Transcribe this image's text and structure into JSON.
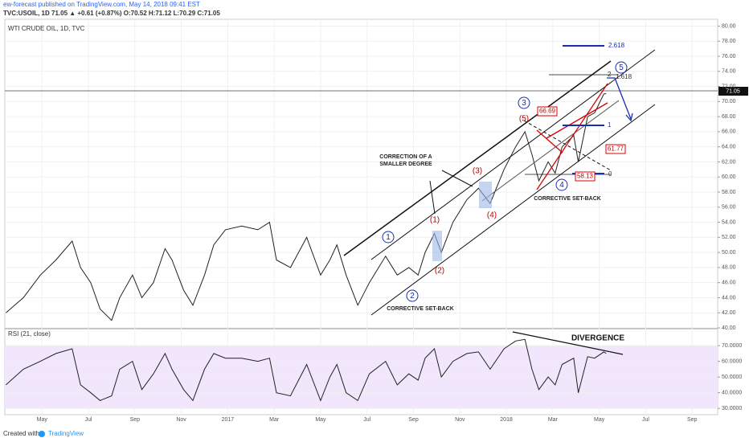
{
  "header": {
    "author_line": "ew-forecast published on TradingView.com, May 14, 2018 09:41 EST",
    "symbol_line": "TVC:USOIL, 1D 71.05 ▲ +0.61 (+0.87%) O:70.52 H:71.12 L:70.29 C:71.05"
  },
  "chart_data": [
    {
      "type": "line",
      "title": "WTI CRUDE OIL, 1D, TVC",
      "color": "#222",
      "last_label": "71.05",
      "x": [
        2.45,
        3.2,
        3.93,
        4.6,
        5.3,
        5.66,
        6.1,
        6.5,
        7.0,
        7.35,
        7.9,
        8.3,
        8.8,
        9.3,
        9.6,
        10.1,
        10.5,
        11.0,
        11.4,
        11.9,
        12.6,
        13.3,
        13.8,
        14.1,
        14.7,
        15.4,
        16.0,
        16.4,
        16.7,
        17.1,
        17.6,
        18.1,
        18.8,
        19.3,
        19.8,
        20.2,
        20.5,
        20.9,
        21.2,
        21.7,
        22.3,
        22.8,
        23.3,
        23.9,
        24.4,
        24.8,
        25.1,
        25.4,
        25.8,
        26.1,
        26.4,
        26.9,
        27.1,
        27.5,
        27.8,
        28.2,
        28.3
      ],
      "values": [
        42,
        44,
        47,
        49,
        51.5,
        48,
        46,
        42.5,
        41,
        44,
        47,
        44,
        46,
        50.5,
        49,
        45,
        43,
        47,
        51,
        53,
        53.5,
        53,
        54,
        49,
        48,
        52,
        47,
        49,
        51,
        47,
        43,
        46,
        49.5,
        47,
        48,
        47,
        50,
        52.5,
        50,
        54,
        57,
        58.5,
        56.5,
        61,
        64,
        66,
        63,
        59.5,
        62,
        60.5,
        64,
        65.5,
        62,
        68,
        68.5,
        71,
        71.05
      ],
      "xlim": [
        2.4,
        33.1
      ],
      "xticks": [
        {
          "value": 4,
          "label": "May"
        },
        {
          "value": 6,
          "label": "Jul"
        },
        {
          "value": 8,
          "label": "Sep"
        },
        {
          "value": 10,
          "label": "Nov"
        },
        {
          "value": 12,
          "label": "2017"
        },
        {
          "value": 14,
          "label": "Mar"
        },
        {
          "value": 16,
          "label": "May"
        },
        {
          "value": 18,
          "label": "Jul"
        },
        {
          "value": 20,
          "label": "Sep"
        },
        {
          "value": 22,
          "label": "Nov"
        },
        {
          "value": 24,
          "label": "2018"
        },
        {
          "value": 26,
          "label": "Mar"
        },
        {
          "value": 28,
          "label": "May"
        },
        {
          "value": 30,
          "label": "Jul"
        },
        {
          "value": 32,
          "label": "Sep"
        }
      ],
      "ylim": [
        40,
        80.9
      ],
      "yticks": [
        {
          "value": 40,
          "label": "40.00"
        },
        {
          "value": 42,
          "label": "42.00"
        },
        {
          "value": 44,
          "label": "44.00"
        },
        {
          "value": 46,
          "label": "46.00"
        },
        {
          "value": 48,
          "label": "48.00"
        },
        {
          "value": 50,
          "label": "50.00"
        },
        {
          "value": 52,
          "label": "52.00"
        },
        {
          "value": 54,
          "label": "54.00"
        },
        {
          "value": 56,
          "label": "56.00"
        },
        {
          "value": 58,
          "label": "58.00"
        },
        {
          "value": 60,
          "label": "60.00"
        },
        {
          "value": 62,
          "label": "62.00"
        },
        {
          "value": 64,
          "label": "64.00"
        },
        {
          "value": 66,
          "label": "66.00"
        },
        {
          "value": 68,
          "label": "68.00"
        },
        {
          "value": 70,
          "label": "70.00"
        },
        {
          "value": 72,
          "label": "72.00"
        },
        {
          "value": 74,
          "label": "74.00"
        },
        {
          "value": 76,
          "label": "76.00"
        },
        {
          "value": 78,
          "label": "78.00"
        },
        {
          "value": 80,
          "label": "80.00"
        }
      ]
    },
    {
      "type": "line",
      "title": "RSI (21, close)",
      "color": "#222",
      "band_color": "#f1e6fb",
      "x": [
        2.45,
        3.2,
        3.93,
        4.6,
        5.3,
        5.66,
        6.1,
        6.5,
        7.0,
        7.35,
        7.9,
        8.3,
        8.8,
        9.3,
        9.6,
        10.1,
        10.5,
        11.0,
        11.4,
        11.9,
        12.6,
        13.3,
        13.8,
        14.1,
        14.7,
        15.4,
        16.0,
        16.4,
        16.7,
        17.1,
        17.6,
        18.1,
        18.8,
        19.3,
        19.8,
        20.2,
        20.5,
        20.9,
        21.2,
        21.7,
        22.3,
        22.8,
        23.3,
        23.9,
        24.4,
        24.8,
        25.1,
        25.4,
        25.8,
        26.1,
        26.4,
        26.9,
        27.1,
        27.5,
        27.8,
        28.2,
        28.3
      ],
      "values": [
        45,
        55,
        60,
        65,
        68,
        45,
        40,
        35,
        38,
        55,
        60,
        42,
        52,
        65,
        55,
        42,
        35,
        55,
        65,
        62,
        62,
        60,
        62,
        40,
        38,
        58,
        35,
        50,
        58,
        40,
        35,
        52,
        60,
        45,
        52,
        48,
        62,
        68,
        50,
        60,
        65,
        66,
        55,
        68,
        73,
        74,
        55,
        42,
        50,
        45,
        58,
        62,
        40,
        63,
        62,
        66,
        65
      ],
      "xlim": [
        2.4,
        33.1
      ],
      "ylim": [
        26,
        80.3
      ],
      "yticks": [
        {
          "value": 30,
          "label": "30.0000"
        },
        {
          "value": 40,
          "label": "40.0000"
        },
        {
          "value": 50,
          "label": "50.0000"
        },
        {
          "value": 60,
          "label": "60.0000"
        },
        {
          "value": 70,
          "label": "70.0000"
        }
      ]
    }
  ],
  "annotations": {
    "w1": "1",
    "w2": "2",
    "w3": "3",
    "w4": "4",
    "w5": "5",
    "p1": "(1)",
    "p2": "(2)",
    "p3": "(3)",
    "p4": "(4)",
    "p5": "(5)",
    "correction_1": "CORRECTION OF A",
    "correction_2": "SMALLER DEGREE",
    "setback_1": "CORRECTIVE SET-BACK",
    "setback_2": "CORRECTIVE SET-BACK",
    "box_1": "66.69",
    "box_2": "61.77",
    "box_3": "58.13",
    "fib_2618": "2.618",
    "fib_2": "2",
    "fib_1618": "1.618",
    "fib_1": "1",
    "fib_0": "0",
    "divergence": "DIVERGENCE"
  },
  "footer": {
    "created": "Created with",
    "brand": "TradingView"
  }
}
